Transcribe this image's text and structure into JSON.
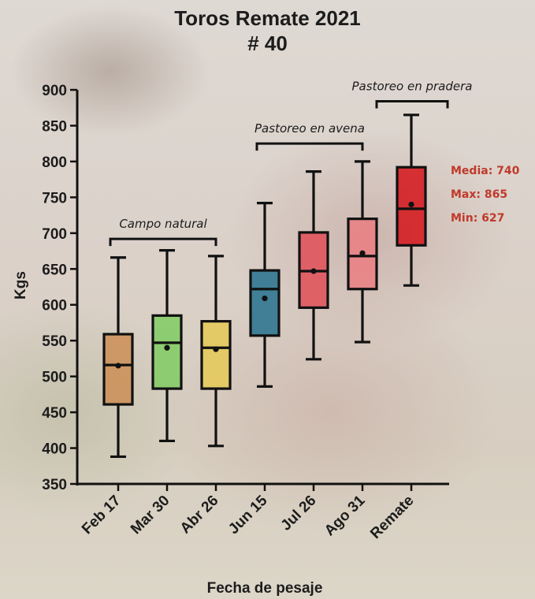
{
  "title": "Toros Remate 2021",
  "subtitle": "# 40",
  "chart_data": {
    "type": "box",
    "title": "Toros Remate 2021",
    "subtitle": "# 40",
    "xlabel": "Fecha de pesaje",
    "ylabel": "Kgs",
    "ylim": [
      350,
      900
    ],
    "yticks": [
      350,
      400,
      450,
      500,
      550,
      600,
      650,
      700,
      750,
      800,
      850,
      900
    ],
    "grid": false,
    "categories": [
      "Feb 17",
      "Mar 30",
      "Abr 26",
      "Jun 15",
      "Jul 26",
      "Ago 31",
      "Remate"
    ],
    "boxes": [
      {
        "label": "Feb 17",
        "min": 388,
        "q1": 461,
        "median": 516,
        "q3": 559,
        "max": 666,
        "mean": 515,
        "color": "#cc8c52"
      },
      {
        "label": "Mar 30",
        "min": 410,
        "q1": 483,
        "median": 547,
        "q3": 585,
        "max": 676,
        "mean": 540,
        "color": "#7dcc5e"
      },
      {
        "label": "Abr 26",
        "min": 403,
        "q1": 483,
        "median": 540,
        "q3": 577,
        "max": 668,
        "mean": 538,
        "color": "#e6c952"
      },
      {
        "label": "Jun 15",
        "min": 486,
        "q1": 557,
        "median": 622,
        "q3": 648,
        "max": 742,
        "mean": 609,
        "color": "#1f6e8c"
      },
      {
        "label": "Jul 26",
        "min": 524,
        "q1": 596,
        "median": 647,
        "q3": 701,
        "max": 786,
        "mean": 647,
        "color": "#e04b53"
      },
      {
        "label": "Ago 31",
        "min": 548,
        "q1": 622,
        "median": 668,
        "q3": 720,
        "max": 800,
        "mean": 672,
        "color": "#ec7b80"
      },
      {
        "label": "Remate",
        "min": 627,
        "q1": 683,
        "median": 734,
        "q3": 792,
        "max": 865,
        "mean": 740,
        "color": "#d40e14"
      }
    ],
    "annotations": [
      {
        "text": "Campo natural",
        "from": "Feb 17",
        "to": "Abr 26",
        "y": 692
      },
      {
        "text": "Pastoreo en avena",
        "from": "Jun 15",
        "to": "Ago 31",
        "y": 825
      },
      {
        "text": "Pastoreo en pradera",
        "from": "Ago 31",
        "to": "Remate",
        "y": 884
      }
    ],
    "stats": {
      "media": "Media: 740",
      "max": "Max: 865",
      "min": "Min: 627",
      "color": "#c0392b"
    }
  }
}
